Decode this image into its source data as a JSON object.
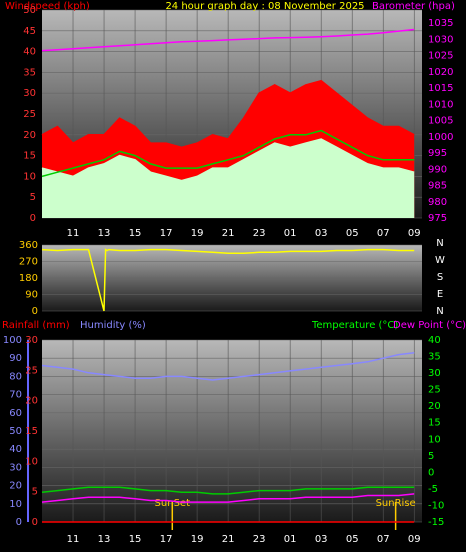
{
  "chart_data": [
    {
      "type": "line",
      "title": "24 hour graph day : 08 November 2025",
      "y_label": "Windspeed (kph)",
      "y2_label": "Barometer (hpa)",
      "x": [
        0,
        1,
        2,
        3,
        4,
        5,
        6,
        7,
        8,
        9,
        10,
        11,
        12,
        13,
        14,
        15,
        16,
        17,
        18,
        19,
        20,
        21,
        22,
        23,
        24
      ],
      "xlim": [
        0,
        24.5
      ],
      "xticks": [
        {
          "value": 2,
          "label": "11"
        },
        {
          "value": 4,
          "label": "13"
        },
        {
          "value": 6,
          "label": "15"
        },
        {
          "value": 8,
          "label": "17"
        },
        {
          "value": 10,
          "label": "19"
        },
        {
          "value": 12,
          "label": "21"
        },
        {
          "value": 14,
          "label": "23"
        },
        {
          "value": 16,
          "label": "01"
        },
        {
          "value": 18,
          "label": "03"
        },
        {
          "value": 20,
          "label": "05"
        },
        {
          "value": 22,
          "label": "07"
        },
        {
          "value": 24,
          "label": "09"
        }
      ],
      "ylim": [
        0,
        50
      ],
      "yticks": [
        0,
        5,
        10,
        15,
        20,
        25,
        30,
        35,
        40,
        45,
        50
      ],
      "y2lim": [
        975,
        1039
      ],
      "y2ticks": [
        975,
        980,
        985,
        990,
        995,
        1000,
        1005,
        1010,
        1015,
        1020,
        1025,
        1030,
        1035
      ],
      "grid": true,
      "series": [
        {
          "color": "#ff0000",
          "fill": true,
          "values": [
            20,
            22,
            18,
            20,
            20,
            24,
            22,
            18,
            18,
            17,
            18,
            20,
            19,
            24,
            30,
            32,
            30,
            32,
            33,
            30,
            27,
            24,
            22,
            22,
            20
          ]
        },
        {
          "color": "#ccffcc",
          "fill": true,
          "values": [
            12,
            11,
            10,
            12,
            13,
            15,
            14,
            11,
            10,
            9,
            10,
            12,
            12,
            14,
            16,
            18,
            17,
            18,
            19,
            17,
            15,
            13,
            12,
            12,
            11
          ]
        },
        {
          "color": "#00cc00",
          "values": [
            10,
            11,
            12,
            13,
            14,
            16,
            15,
            13,
            12,
            12,
            12,
            13,
            14,
            15,
            17,
            19,
            20,
            20,
            21,
            19,
            17,
            15,
            14,
            14,
            14
          ]
        },
        {
          "color": "#ff00ff",
          "axis": "y2",
          "values": [
            1026.5,
            1026.8,
            1027.1,
            1027.4,
            1027.7,
            1028,
            1028.3,
            1028.6,
            1028.9,
            1029.2,
            1029.4,
            1029.6,
            1029.8,
            1030,
            1030.2,
            1030.4,
            1030.5,
            1030.6,
            1030.8,
            1031,
            1031.3,
            1031.6,
            1032,
            1032.5,
            1033
          ]
        }
      ]
    },
    {
      "type": "line",
      "x": [
        0,
        1,
        2,
        3,
        4,
        4.1,
        4.2,
        4.3,
        5,
        6,
        7,
        8,
        9,
        10,
        11,
        12,
        13,
        14,
        15,
        16,
        17,
        18,
        19,
        20,
        21,
        22,
        23,
        24
      ],
      "xlim": [
        0,
        24.5
      ],
      "ylim": [
        0,
        360
      ],
      "yticks": [
        0,
        90,
        180,
        270,
        360
      ],
      "compass": [
        "N",
        "W",
        "S",
        "E",
        "N"
      ],
      "grid": true,
      "series": [
        {
          "color": "#ffff00",
          "values": [
            335,
            330,
            335,
            335,
            0,
            335,
            330,
            335,
            330,
            330,
            335,
            335,
            330,
            325,
            320,
            315,
            315,
            320,
            320,
            325,
            325,
            325,
            330,
            330,
            335,
            335,
            330,
            330
          ]
        }
      ]
    },
    {
      "type": "line",
      "rain_label": "Rainfall (mm)",
      "humidity_label": "Humidity (%)",
      "temp_label": "Temperature (°C)",
      "dew_label": "Dew Point (°C)",
      "x": [
        0,
        1,
        2,
        3,
        4,
        5,
        6,
        7,
        8,
        9,
        10,
        11,
        12,
        13,
        14,
        15,
        16,
        17,
        18,
        19,
        20,
        21,
        22,
        23,
        24
      ],
      "xlim": [
        0,
        24.5
      ],
      "xticks": [
        {
          "value": 2,
          "label": "11"
        },
        {
          "value": 4,
          "label": "13"
        },
        {
          "value": 6,
          "label": "15"
        },
        {
          "value": 8,
          "label": "17"
        },
        {
          "value": 10,
          "label": "19"
        },
        {
          "value": 12,
          "label": "21"
        },
        {
          "value": 14,
          "label": "23"
        },
        {
          "value": 16,
          "label": "01"
        },
        {
          "value": 18,
          "label": "03"
        },
        {
          "value": 20,
          "label": "05"
        },
        {
          "value": 22,
          "label": "07"
        },
        {
          "value": 24,
          "label": "09"
        }
      ],
      "ylim": [
        0,
        30
      ],
      "yticks": [
        0,
        5,
        10,
        15,
        20,
        25,
        30
      ],
      "hlim": [
        0,
        100
      ],
      "hticks": [
        0,
        10,
        20,
        30,
        40,
        50,
        60,
        70,
        80,
        90,
        100
      ],
      "y2lim": [
        -15,
        40
      ],
      "y2ticks": [
        -15,
        -10,
        -5,
        0,
        5,
        10,
        15,
        20,
        25,
        30,
        35,
        40
      ],
      "grid": true,
      "annotations": [
        {
          "text": "SunSet",
          "x": 8.4
        },
        {
          "text": "SunRise",
          "x": 22.8
        }
      ],
      "series": [
        {
          "color": "#ff0000",
          "values": [
            0,
            0,
            0,
            0,
            0,
            0,
            0,
            0,
            0,
            0,
            0,
            0,
            0,
            0,
            0,
            0,
            0,
            0,
            0,
            0,
            0,
            0,
            0,
            0,
            0
          ]
        },
        {
          "color": "#8888ff",
          "axis": "h",
          "values": [
            86,
            85,
            84,
            82,
            81,
            80,
            79,
            79,
            80,
            80,
            79,
            78,
            79,
            80,
            81,
            82,
            83,
            84,
            85,
            86,
            87,
            88,
            90,
            92,
            93
          ]
        },
        {
          "color": "#00cc00",
          "axis": "y2",
          "values": [
            -6,
            -5.5,
            -5,
            -4.5,
            -4.5,
            -4.5,
            -5,
            -5.5,
            -5.5,
            -6,
            -6,
            -6.5,
            -6.5,
            -6,
            -5.5,
            -5.5,
            -5.5,
            -5,
            -5,
            -5,
            -5,
            -4.5,
            -4.5,
            -4.5,
            -4.5
          ]
        },
        {
          "color": "#ff00ff",
          "axis": "y2",
          "values": [
            -9,
            -8.5,
            -8,
            -7.5,
            -7.5,
            -7.5,
            -8,
            -8.5,
            -8.5,
            -9,
            -9,
            -9,
            -9,
            -8.5,
            -8,
            -8,
            -8,
            -7.5,
            -7.5,
            -7.5,
            -7.5,
            -7,
            -7,
            -7,
            -6.5
          ]
        }
      ]
    }
  ]
}
